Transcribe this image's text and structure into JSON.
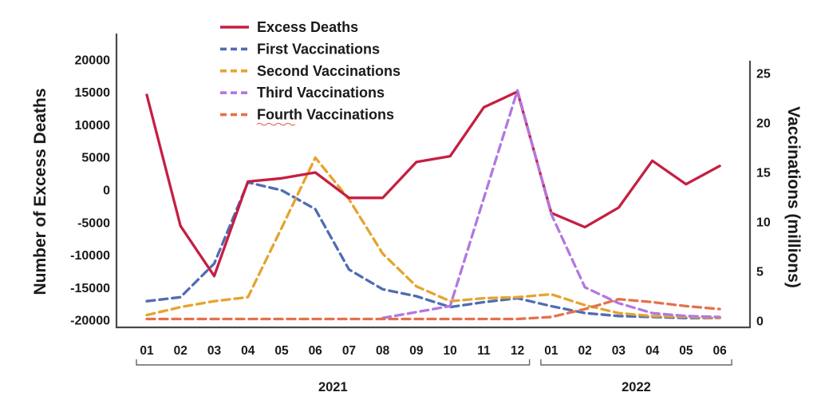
{
  "chart_data": {
    "type": "line",
    "title": "",
    "categories": [
      "01",
      "02",
      "03",
      "04",
      "05",
      "06",
      "07",
      "08",
      "09",
      "10",
      "11",
      "12",
      "01",
      "02",
      "03",
      "04",
      "05",
      "06"
    ],
    "year_groups": [
      {
        "label": "2021",
        "from": 0,
        "to": 11
      },
      {
        "label": "2022",
        "from": 12,
        "to": 17
      }
    ],
    "left_axis": {
      "label": "Number of Excess Deaths",
      "ticks": [
        20000,
        15000,
        10000,
        5000,
        0,
        -5000,
        -10000,
        -15000,
        -20000
      ],
      "range": [
        -20000,
        20000
      ]
    },
    "right_axis": {
      "label": "Vaccinations (millions)",
      "ticks": [
        25,
        20,
        15,
        10,
        5,
        0
      ],
      "range": [
        0,
        25
      ]
    },
    "grid": false,
    "legend_position": "top-left-inside",
    "series": [
      {
        "name": "Excess Deaths",
        "axis": "left",
        "style": "solid",
        "color": "#c61e42",
        "values": [
          14600,
          -5500,
          -13200,
          1300,
          1800,
          2700,
          -1200,
          -1200,
          4300,
          5200,
          12700,
          15100,
          -3500,
          -5700,
          -2700,
          4500,
          900,
          3700
        ]
      },
      {
        "name": "First Vaccinations",
        "axis": "right",
        "style": "dashed",
        "color": "#4f6cb4",
        "values": [
          2.0,
          2.4,
          5.8,
          14.0,
          13.2,
          11.3,
          5.2,
          3.2,
          2.5,
          1.4,
          1.9,
          2.3,
          1.5,
          0.8,
          0.5,
          0.4,
          0.3,
          0.3
        ]
      },
      {
        "name": "Second Vaccinations",
        "axis": "right",
        "style": "dashed",
        "color": "#e5a42e",
        "values": [
          0.6,
          1.4,
          2.0,
          2.4,
          9.4,
          16.5,
          12.3,
          6.8,
          3.5,
          2.0,
          2.3,
          2.4,
          2.7,
          1.6,
          0.8,
          0.5,
          0.4,
          0.3
        ]
      },
      {
        "name": "Third Vaccinations",
        "axis": "right",
        "style": "dashed",
        "color": "#b277e2",
        "values": [
          null,
          null,
          null,
          null,
          null,
          null,
          null,
          0.3,
          0.9,
          1.5,
          12.4,
          23.3,
          10.8,
          3.4,
          1.8,
          0.8,
          0.5,
          0.4
        ]
      },
      {
        "name": "Fourth Vaccinations",
        "axis": "right",
        "style": "dashed",
        "color": "#e5714b",
        "underline_first_word": true,
        "values": [
          0.2,
          0.2,
          0.2,
          0.2,
          0.2,
          0.2,
          0.2,
          0.2,
          0.2,
          0.2,
          0.2,
          0.2,
          0.4,
          1.2,
          2.2,
          1.9,
          1.5,
          1.2
        ]
      }
    ],
    "colors": {
      "spine": "#4a4a4a",
      "text": "#1a1a1a",
      "bracket": "#666666",
      "spellcheck_underline": "#e0453a",
      "background": "#ffffff"
    }
  }
}
